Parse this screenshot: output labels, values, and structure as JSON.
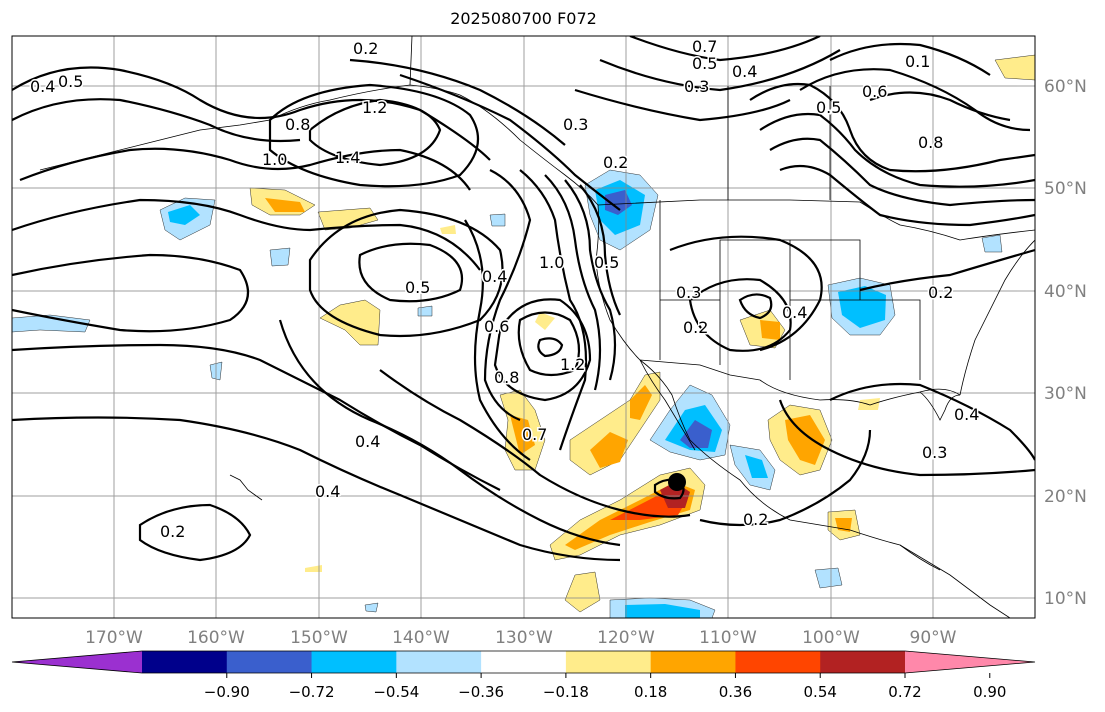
{
  "title": "2025080700 F072",
  "lon_labels": [
    "170°W",
    "160°W",
    "150°W",
    "140°W",
    "130°W",
    "120°W",
    "110°W",
    "100°W",
    "90°W"
  ],
  "lat_labels": [
    "60°N",
    "50°N",
    "40°N",
    "30°N",
    "20°N",
    "10°N"
  ],
  "colorbar": {
    "ticks": [
      "−0.90",
      "−0.72",
      "−0.54",
      "−0.36",
      "−0.18",
      "0.18",
      "0.36",
      "0.54",
      "0.72",
      "0.90"
    ],
    "colors": [
      "#9b30d0",
      "#00008b",
      "#3a5fcd",
      "#00bfff",
      "#b2e2ff",
      "#ffffff",
      "#ffec8b",
      "#ffa500",
      "#ff4500",
      "#b22222",
      "#ff88aa"
    ]
  },
  "contour_labels": [
    "0.2",
    "0.7",
    "0.5",
    "0.4",
    "0.3",
    "0.1",
    "0.6",
    "0.5",
    "0.4",
    "0.5",
    "1.2",
    "0.8",
    "1.4",
    "1.0",
    "0.3",
    "0.2",
    "0.8",
    "1.0",
    "0.5",
    "0.4",
    "0.6",
    "0.8",
    "1.2",
    "0.3",
    "0.2",
    "0.4",
    "0.2",
    "0.7",
    "0.4",
    "0.4",
    "0.2",
    "0.4",
    "0.3",
    "0.2",
    "0.5"
  ],
  "grid_color": "#888888",
  "label_color": "#808080"
}
